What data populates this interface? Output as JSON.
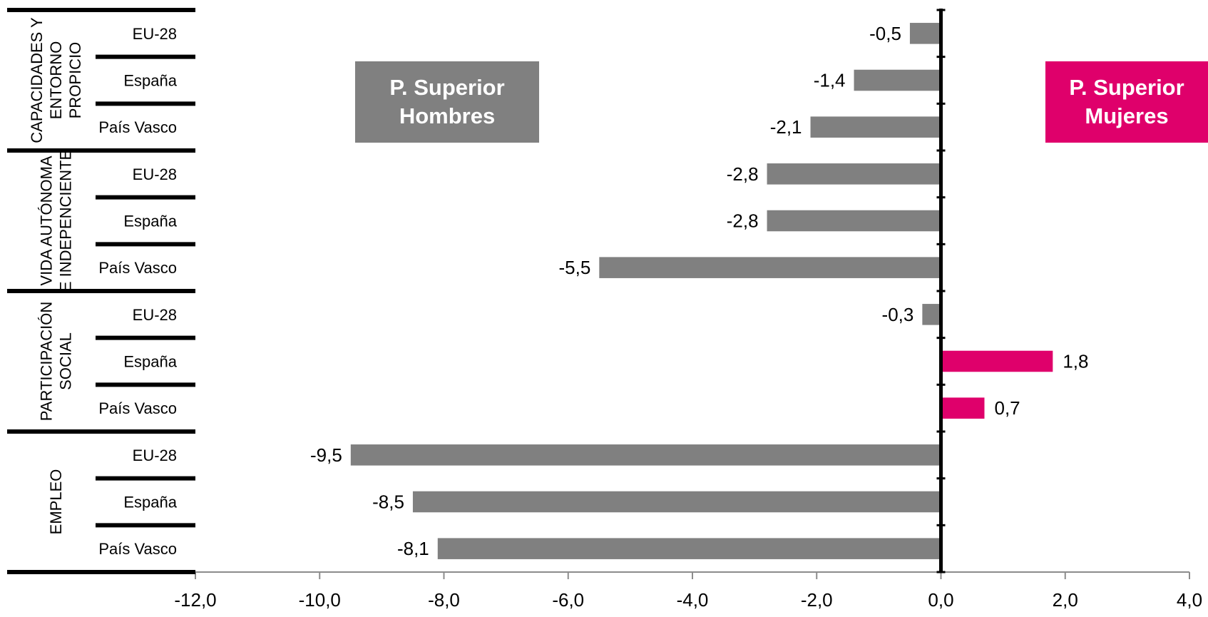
{
  "chart_data": {
    "type": "bar",
    "orientation": "horizontal",
    "groups": [
      {
        "name": "CAPACIDADES Y ENTORNO PROPICIO",
        "label_lines": [
          "CAPACIDADES Y",
          "ENTORNO",
          "PROPICIO"
        ],
        "items": [
          {
            "category": "EU-28",
            "value": -0.5,
            "label": "-0,5"
          },
          {
            "category": "España",
            "value": -1.4,
            "label": "-1,4"
          },
          {
            "category": "País Vasco",
            "value": -2.1,
            "label": "-2,1"
          }
        ]
      },
      {
        "name": "VIDA AUTÓNOMA E INDEPENCIENTE",
        "label_lines": [
          "VIDA AUTÓNOMA",
          "E INDEPENCIENTE"
        ],
        "items": [
          {
            "category": "EU-28",
            "value": -2.8,
            "label": "-2,8"
          },
          {
            "category": "España",
            "value": -2.8,
            "label": "-2,8"
          },
          {
            "category": "País Vasco",
            "value": -5.5,
            "label": "-5,5"
          }
        ]
      },
      {
        "name": "PARTICIPACIÓN SOCIAL",
        "label_lines": [
          "PARTICIPACIÓN",
          "SOCIAL"
        ],
        "items": [
          {
            "category": "EU-28",
            "value": -0.3,
            "label": "-0,3"
          },
          {
            "category": "España",
            "value": 1.8,
            "label": "1,8"
          },
          {
            "category": "País Vasco",
            "value": 0.7,
            "label": "0,7"
          }
        ]
      },
      {
        "name": "EMPLEO",
        "label_lines": [
          "EMPLEO"
        ],
        "items": [
          {
            "category": "EU-28",
            "value": -9.5,
            "label": "-9,5"
          },
          {
            "category": "España",
            "value": -8.5,
            "label": "-8,5"
          },
          {
            "category": "País Vasco",
            "value": -8.1,
            "label": "-8,1"
          }
        ]
      }
    ],
    "xlim": [
      -12.0,
      4.0
    ],
    "xticks": [
      -12,
      -10,
      -8,
      -6,
      -4,
      -2,
      0,
      2,
      4
    ],
    "xtick_labels": [
      "-12,0",
      "-10,0",
      "-8,0",
      "-6,0",
      "-4,0",
      "-2,0",
      "0,0",
      "2,0",
      "4,0"
    ],
    "grid": false,
    "colors": {
      "negative": "#808080",
      "positive": "#df006b",
      "axis": "#000000",
      "text": "#000000"
    }
  },
  "legend": {
    "men": {
      "text": "P. Superior\nHombres",
      "color": "#808080",
      "position": "top-center"
    },
    "women": {
      "text": "P. Superior\nMujeres",
      "color": "#df006b",
      "position": "top-right"
    }
  }
}
